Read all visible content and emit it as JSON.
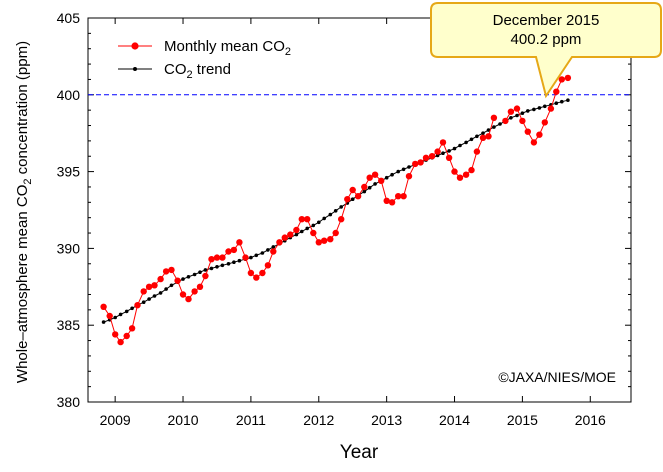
{
  "chart_data": {
    "type": "line",
    "xlabel": "Year",
    "ylabel": {
      "prefix": "Whole",
      "dash": "–",
      "mid": "atmosphere mean CO",
      "sub": "2",
      "suffix": " concentration (ppm)"
    },
    "xlim": [
      2008.6,
      2016.6
    ],
    "ylim": [
      380,
      405
    ],
    "x_ticks": [
      "2009",
      "2010",
      "2011",
      "2012",
      "2013",
      "2014",
      "2015",
      "2016"
    ],
    "y_ticks": [
      "380",
      "385",
      "390",
      "395",
      "400",
      "405"
    ],
    "reference_line": {
      "y": 400,
      "color": "#0000ff",
      "style": "dashed"
    },
    "legend": {
      "placement": "top-left",
      "entries": [
        {
          "prefix": "Monthly mean CO",
          "sub": "2",
          "suffix": ""
        },
        {
          "prefix": "CO",
          "sub": "2",
          "suffix": " trend"
        }
      ]
    },
    "annotation": {
      "line1": "December 2015",
      "line2": "400.2 ppm",
      "target": {
        "x": 2015.42,
        "y": 400.2
      },
      "fill": "#ffffcc",
      "border": "#e6a817"
    },
    "credit": "©JAXA/NIES/MOE",
    "series": [
      {
        "name": "Monthly mean CO₂",
        "color": "#ff0000",
        "marker": "circle",
        "x": [
          2008.83,
          2008.92,
          2009.0,
          2009.08,
          2009.17,
          2009.25,
          2009.33,
          2009.42,
          2009.5,
          2009.58,
          2009.67,
          2009.75,
          2009.83,
          2009.92,
          2010.0,
          2010.08,
          2010.17,
          2010.25,
          2010.33,
          2010.42,
          2010.5,
          2010.58,
          2010.67,
          2010.75,
          2010.83,
          2010.92,
          2011.0,
          2011.08,
          2011.17,
          2011.25,
          2011.33,
          2011.42,
          2011.5,
          2011.58,
          2011.67,
          2011.75,
          2011.83,
          2011.92,
          2012.0,
          2012.08,
          2012.17,
          2012.25,
          2012.33,
          2012.42,
          2012.5,
          2012.58,
          2012.67,
          2012.75,
          2012.83,
          2012.92,
          2013.0,
          2013.08,
          2013.17,
          2013.25,
          2013.33,
          2013.42,
          2013.5,
          2013.58,
          2013.67,
          2013.75,
          2013.83,
          2013.92,
          2014.0,
          2014.08,
          2014.17,
          2014.25,
          2014.33,
          2014.42,
          2014.5,
          2014.58,
          null,
          2014.75,
          2014.83,
          2014.92,
          2015.0,
          2015.08,
          2015.17,
          2015.25,
          2015.33,
          2015.42,
          2015.5,
          2015.58,
          2015.67
        ],
        "y": [
          386.2,
          385.6,
          384.4,
          383.9,
          384.3,
          384.8,
          386.3,
          387.2,
          387.5,
          387.6,
          388.0,
          388.5,
          388.6,
          387.9,
          387.0,
          386.7,
          387.2,
          387.5,
          388.2,
          389.3,
          389.4,
          389.4,
          389.8,
          389.9,
          390.4,
          389.4,
          388.4,
          388.1,
          388.4,
          388.9,
          389.8,
          390.4,
          390.7,
          390.9,
          391.2,
          391.9,
          391.9,
          391.0,
          390.4,
          390.5,
          390.6,
          391.0,
          391.9,
          393.2,
          393.8,
          393.4,
          394.0,
          394.6,
          394.8,
          394.4,
          393.1,
          393.0,
          393.4,
          393.4,
          394.7,
          395.5,
          395.6,
          395.9,
          396.0,
          396.3,
          396.9,
          395.9,
          395.0,
          394.6,
          394.8,
          395.1,
          396.3,
          397.2,
          397.3,
          398.5,
          null,
          398.3,
          398.9,
          399.1,
          398.3,
          397.6,
          396.9,
          397.4,
          398.2,
          399.1,
          400.2,
          401.0,
          401.1
        ]
      },
      {
        "name": "CO₂ trend",
        "color": "#000000",
        "marker": "dot",
        "x": [
          2008.83,
          2008.92,
          2009.0,
          2009.08,
          2009.17,
          2009.25,
          2009.33,
          2009.42,
          2009.5,
          2009.58,
          2009.67,
          2009.75,
          2009.83,
          2009.92,
          2010.0,
          2010.08,
          2010.17,
          2010.25,
          2010.33,
          2010.42,
          2010.5,
          2010.58,
          2010.67,
          2010.75,
          2010.83,
          2010.92,
          2011.0,
          2011.08,
          2011.17,
          2011.25,
          2011.33,
          2011.42,
          2011.5,
          2011.58,
          2011.67,
          2011.75,
          2011.83,
          2011.92,
          2012.0,
          2012.08,
          2012.17,
          2012.25,
          2012.33,
          2012.42,
          2012.5,
          2012.58,
          2012.67,
          2012.75,
          2012.83,
          2012.92,
          2013.0,
          2013.08,
          2013.17,
          2013.25,
          2013.33,
          2013.42,
          2013.5,
          2013.58,
          2013.67,
          2013.75,
          2013.83,
          2013.92,
          2014.0,
          2014.08,
          2014.17,
          2014.25,
          2014.33,
          2014.42,
          2014.5,
          2014.58,
          2014.67,
          2014.75,
          2014.83,
          2014.92,
          2015.0,
          2015.08,
          2015.17,
          2015.25,
          2015.33,
          2015.42,
          2015.5,
          2015.58,
          2015.67
        ],
        "y": [
          385.2,
          385.35,
          385.5,
          385.7,
          385.9,
          386.1,
          386.3,
          386.5,
          386.7,
          386.9,
          387.1,
          387.35,
          387.6,
          387.8,
          388.0,
          388.15,
          388.3,
          388.45,
          388.6,
          388.7,
          388.8,
          388.9,
          389.0,
          389.1,
          389.2,
          389.3,
          389.4,
          389.55,
          389.7,
          389.9,
          390.1,
          390.3,
          390.5,
          390.7,
          390.9,
          391.1,
          391.3,
          391.5,
          391.7,
          391.95,
          392.2,
          392.45,
          392.7,
          392.95,
          393.2,
          393.45,
          393.7,
          393.95,
          394.2,
          394.4,
          394.6,
          394.8,
          395.0,
          395.15,
          395.3,
          395.45,
          395.6,
          395.75,
          395.9,
          396.05,
          396.2,
          396.35,
          396.5,
          396.7,
          396.9,
          397.1,
          397.3,
          397.5,
          397.7,
          397.9,
          398.1,
          398.3,
          398.5,
          398.65,
          398.8,
          398.95,
          399.05,
          399.15,
          399.25,
          399.35,
          399.45,
          399.55,
          399.65
        ]
      }
    ]
  }
}
